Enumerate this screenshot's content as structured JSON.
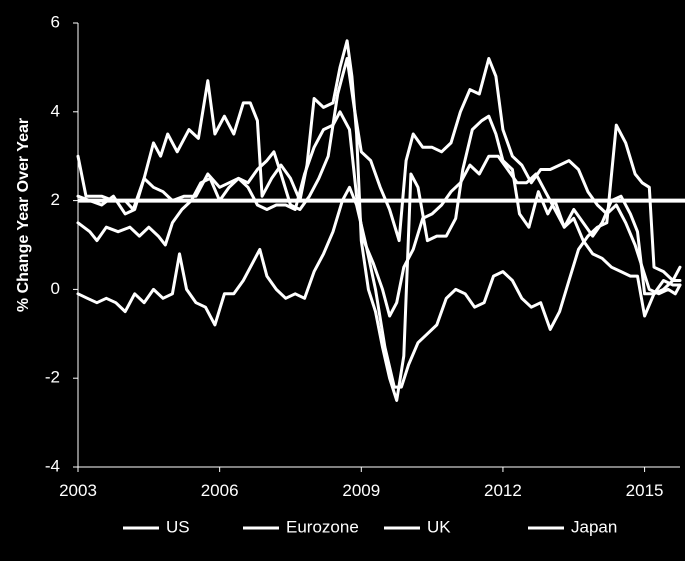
{
  "chart_data": {
    "type": "line",
    "title": "",
    "xlabel": "",
    "ylabel": "% Change Year Over Year",
    "xlim": [
      2003,
      2015.75
    ],
    "ylim": [
      -4,
      6
    ],
    "x_ticks": [
      2003,
      2006,
      2009,
      2012,
      2015
    ],
    "y_ticks": [
      -4,
      -2,
      0,
      2,
      4,
      6
    ],
    "grid": false,
    "legend_position": "bottom",
    "reference_line": {
      "y": 2
    },
    "colors": {
      "background": "#000000",
      "lines": "#ffffff"
    },
    "series": [
      {
        "name": "US",
        "points": [
          [
            2003.0,
            3.0
          ],
          [
            2003.17,
            2.1
          ],
          [
            2003.5,
            2.1
          ],
          [
            2003.75,
            2.0
          ],
          [
            2004.0,
            2.0
          ],
          [
            2004.17,
            1.8
          ],
          [
            2004.4,
            2.5
          ],
          [
            2004.6,
            3.3
          ],
          [
            2004.75,
            3.0
          ],
          [
            2004.9,
            3.5
          ],
          [
            2005.1,
            3.1
          ],
          [
            2005.35,
            3.6
          ],
          [
            2005.55,
            3.4
          ],
          [
            2005.75,
            4.7
          ],
          [
            2005.9,
            3.5
          ],
          [
            2006.1,
            3.9
          ],
          [
            2006.3,
            3.5
          ],
          [
            2006.5,
            4.2
          ],
          [
            2006.65,
            4.2
          ],
          [
            2006.8,
            3.8
          ],
          [
            2006.9,
            2.1
          ],
          [
            2007.1,
            2.5
          ],
          [
            2007.3,
            2.8
          ],
          [
            2007.5,
            2.5
          ],
          [
            2007.7,
            2.0
          ],
          [
            2007.85,
            2.8
          ],
          [
            2008.0,
            4.3
          ],
          [
            2008.2,
            4.1
          ],
          [
            2008.4,
            4.2
          ],
          [
            2008.55,
            5.0
          ],
          [
            2008.7,
            5.6
          ],
          [
            2008.8,
            4.8
          ],
          [
            2008.9,
            3.5
          ],
          [
            2009.0,
            1.1
          ],
          [
            2009.15,
            0.0
          ],
          [
            2009.3,
            -0.5
          ],
          [
            2009.45,
            -1.3
          ],
          [
            2009.6,
            -2.0
          ],
          [
            2009.75,
            -2.5
          ],
          [
            2009.9,
            -1.5
          ],
          [
            2010.05,
            2.6
          ],
          [
            2010.2,
            2.3
          ],
          [
            2010.4,
            1.1
          ],
          [
            2010.6,
            1.2
          ],
          [
            2010.8,
            1.2
          ],
          [
            2011.0,
            1.6
          ],
          [
            2011.15,
            2.7
          ],
          [
            2011.35,
            3.6
          ],
          [
            2011.55,
            3.8
          ],
          [
            2011.7,
            3.9
          ],
          [
            2011.85,
            3.5
          ],
          [
            2012.0,
            2.9
          ],
          [
            2012.2,
            2.7
          ],
          [
            2012.35,
            1.7
          ],
          [
            2012.55,
            1.4
          ],
          [
            2012.75,
            2.2
          ],
          [
            2012.95,
            1.7
          ],
          [
            2013.1,
            2.0
          ],
          [
            2013.3,
            1.4
          ],
          [
            2013.5,
            1.8
          ],
          [
            2013.7,
            1.5
          ],
          [
            2013.9,
            1.2
          ],
          [
            2014.1,
            1.5
          ],
          [
            2014.3,
            2.0
          ],
          [
            2014.5,
            2.1
          ],
          [
            2014.7,
            1.7
          ],
          [
            2014.85,
            1.3
          ],
          [
            2015.0,
            -0.1
          ],
          [
            2015.2,
            -0.1
          ],
          [
            2015.4,
            0.0
          ],
          [
            2015.6,
            0.2
          ],
          [
            2015.75,
            0.2
          ]
        ]
      },
      {
        "name": "Eurozone",
        "points": [
          [
            2003.0,
            2.1
          ],
          [
            2003.25,
            2.0
          ],
          [
            2003.5,
            1.9
          ],
          [
            2003.75,
            2.1
          ],
          [
            2004.0,
            1.7
          ],
          [
            2004.2,
            1.8
          ],
          [
            2004.4,
            2.5
          ],
          [
            2004.6,
            2.3
          ],
          [
            2004.8,
            2.2
          ],
          [
            2005.0,
            2.0
          ],
          [
            2005.25,
            2.1
          ],
          [
            2005.5,
            2.1
          ],
          [
            2005.75,
            2.6
          ],
          [
            2006.0,
            2.3
          ],
          [
            2006.2,
            2.4
          ],
          [
            2006.4,
            2.5
          ],
          [
            2006.6,
            2.3
          ],
          [
            2006.8,
            1.9
          ],
          [
            2007.0,
            1.8
          ],
          [
            2007.2,
            1.9
          ],
          [
            2007.4,
            1.9
          ],
          [
            2007.6,
            1.8
          ],
          [
            2007.8,
            2.6
          ],
          [
            2008.0,
            3.2
          ],
          [
            2008.2,
            3.6
          ],
          [
            2008.4,
            3.7
          ],
          [
            2008.55,
            4.0
          ],
          [
            2008.75,
            3.6
          ],
          [
            2008.9,
            2.1
          ],
          [
            2009.05,
            1.1
          ],
          [
            2009.25,
            0.6
          ],
          [
            2009.45,
            0.0
          ],
          [
            2009.6,
            -0.6
          ],
          [
            2009.75,
            -0.3
          ],
          [
            2009.9,
            0.5
          ],
          [
            2010.1,
            0.9
          ],
          [
            2010.3,
            1.6
          ],
          [
            2010.5,
            1.7
          ],
          [
            2010.7,
            1.9
          ],
          [
            2010.9,
            2.2
          ],
          [
            2011.1,
            2.4
          ],
          [
            2011.3,
            2.8
          ],
          [
            2011.5,
            2.6
          ],
          [
            2011.7,
            3.0
          ],
          [
            2011.9,
            3.0
          ],
          [
            2012.1,
            2.7
          ],
          [
            2012.3,
            2.4
          ],
          [
            2012.5,
            2.4
          ],
          [
            2012.7,
            2.6
          ],
          [
            2012.9,
            2.2
          ],
          [
            2013.1,
            1.8
          ],
          [
            2013.3,
            1.4
          ],
          [
            2013.5,
            1.6
          ],
          [
            2013.7,
            1.1
          ],
          [
            2013.9,
            0.8
          ],
          [
            2014.1,
            0.7
          ],
          [
            2014.3,
            0.5
          ],
          [
            2014.5,
            0.4
          ],
          [
            2014.7,
            0.3
          ],
          [
            2014.85,
            0.3
          ],
          [
            2015.0,
            -0.6
          ],
          [
            2015.2,
            -0.1
          ],
          [
            2015.4,
            0.2
          ],
          [
            2015.6,
            0.1
          ],
          [
            2015.75,
            0.1
          ]
        ]
      },
      {
        "name": "UK",
        "points": [
          [
            2003.0,
            1.5
          ],
          [
            2003.25,
            1.3
          ],
          [
            2003.4,
            1.1
          ],
          [
            2003.6,
            1.4
          ],
          [
            2003.85,
            1.3
          ],
          [
            2004.1,
            1.4
          ],
          [
            2004.3,
            1.2
          ],
          [
            2004.5,
            1.4
          ],
          [
            2004.7,
            1.2
          ],
          [
            2004.85,
            1.0
          ],
          [
            2005.0,
            1.5
          ],
          [
            2005.2,
            1.8
          ],
          [
            2005.4,
            2.0
          ],
          [
            2005.6,
            2.4
          ],
          [
            2005.8,
            2.5
          ],
          [
            2006.0,
            2.0
          ],
          [
            2006.2,
            2.3
          ],
          [
            2006.4,
            2.5
          ],
          [
            2006.6,
            2.4
          ],
          [
            2006.8,
            2.7
          ],
          [
            2007.0,
            2.9
          ],
          [
            2007.15,
            3.1
          ],
          [
            2007.3,
            2.6
          ],
          [
            2007.5,
            1.9
          ],
          [
            2007.7,
            1.8
          ],
          [
            2007.9,
            2.1
          ],
          [
            2008.1,
            2.5
          ],
          [
            2008.3,
            3.0
          ],
          [
            2008.5,
            4.4
          ],
          [
            2008.7,
            5.2
          ],
          [
            2008.85,
            4.1
          ],
          [
            2009.0,
            3.1
          ],
          [
            2009.2,
            2.9
          ],
          [
            2009.4,
            2.3
          ],
          [
            2009.6,
            1.8
          ],
          [
            2009.8,
            1.1
          ],
          [
            2009.95,
            2.9
          ],
          [
            2010.1,
            3.5
          ],
          [
            2010.3,
            3.2
          ],
          [
            2010.5,
            3.2
          ],
          [
            2010.7,
            3.1
          ],
          [
            2010.9,
            3.3
          ],
          [
            2011.1,
            4.0
          ],
          [
            2011.3,
            4.5
          ],
          [
            2011.5,
            4.4
          ],
          [
            2011.7,
            5.2
          ],
          [
            2011.85,
            4.8
          ],
          [
            2012.0,
            3.6
          ],
          [
            2012.2,
            3.0
          ],
          [
            2012.4,
            2.8
          ],
          [
            2012.6,
            2.4
          ],
          [
            2012.8,
            2.7
          ],
          [
            2013.0,
            2.7
          ],
          [
            2013.2,
            2.8
          ],
          [
            2013.4,
            2.9
          ],
          [
            2013.6,
            2.7
          ],
          [
            2013.8,
            2.2
          ],
          [
            2014.0,
            1.9
          ],
          [
            2014.2,
            1.7
          ],
          [
            2014.4,
            1.9
          ],
          [
            2014.6,
            1.5
          ],
          [
            2014.8,
            1.0
          ],
          [
            2014.95,
            0.5
          ],
          [
            2015.1,
            0.0
          ],
          [
            2015.3,
            -0.1
          ],
          [
            2015.5,
            0.0
          ],
          [
            2015.65,
            -0.1
          ],
          [
            2015.75,
            0.1
          ]
        ]
      },
      {
        "name": "Japan",
        "points": [
          [
            2003.0,
            -0.1
          ],
          [
            2003.2,
            -0.2
          ],
          [
            2003.4,
            -0.3
          ],
          [
            2003.6,
            -0.2
          ],
          [
            2003.8,
            -0.3
          ],
          [
            2004.0,
            -0.5
          ],
          [
            2004.2,
            -0.1
          ],
          [
            2004.4,
            -0.3
          ],
          [
            2004.6,
            0.0
          ],
          [
            2004.8,
            -0.2
          ],
          [
            2005.0,
            -0.1
          ],
          [
            2005.15,
            0.8
          ],
          [
            2005.3,
            0.0
          ],
          [
            2005.5,
            -0.3
          ],
          [
            2005.7,
            -0.4
          ],
          [
            2005.9,
            -0.8
          ],
          [
            2006.1,
            -0.1
          ],
          [
            2006.3,
            -0.1
          ],
          [
            2006.5,
            0.2
          ],
          [
            2006.7,
            0.6
          ],
          [
            2006.85,
            0.9
          ],
          [
            2007.0,
            0.3
          ],
          [
            2007.2,
            0.0
          ],
          [
            2007.4,
            -0.2
          ],
          [
            2007.6,
            -0.1
          ],
          [
            2007.8,
            -0.2
          ],
          [
            2008.0,
            0.4
          ],
          [
            2008.2,
            0.8
          ],
          [
            2008.4,
            1.3
          ],
          [
            2008.6,
            2.0
          ],
          [
            2008.75,
            2.3
          ],
          [
            2008.9,
            1.9
          ],
          [
            2009.1,
            1.0
          ],
          [
            2009.3,
            0.0
          ],
          [
            2009.5,
            -1.3
          ],
          [
            2009.7,
            -2.2
          ],
          [
            2009.85,
            -2.2
          ],
          [
            2010.0,
            -1.7
          ],
          [
            2010.2,
            -1.2
          ],
          [
            2010.4,
            -1.0
          ],
          [
            2010.6,
            -0.8
          ],
          [
            2010.8,
            -0.2
          ],
          [
            2011.0,
            0.0
          ],
          [
            2011.2,
            -0.1
          ],
          [
            2011.4,
            -0.4
          ],
          [
            2011.6,
            -0.3
          ],
          [
            2011.8,
            0.3
          ],
          [
            2012.0,
            0.4
          ],
          [
            2012.2,
            0.2
          ],
          [
            2012.4,
            -0.2
          ],
          [
            2012.6,
            -0.4
          ],
          [
            2012.8,
            -0.3
          ],
          [
            2013.0,
            -0.9
          ],
          [
            2013.2,
            -0.5
          ],
          [
            2013.4,
            0.2
          ],
          [
            2013.6,
            0.9
          ],
          [
            2013.8,
            1.2
          ],
          [
            2014.0,
            1.4
          ],
          [
            2014.2,
            1.5
          ],
          [
            2014.4,
            3.7
          ],
          [
            2014.6,
            3.3
          ],
          [
            2014.8,
            2.6
          ],
          [
            2014.95,
            2.4
          ],
          [
            2015.1,
            2.3
          ],
          [
            2015.2,
            0.5
          ],
          [
            2015.4,
            0.4
          ],
          [
            2015.6,
            0.2
          ],
          [
            2015.75,
            0.5
          ]
        ]
      }
    ]
  }
}
